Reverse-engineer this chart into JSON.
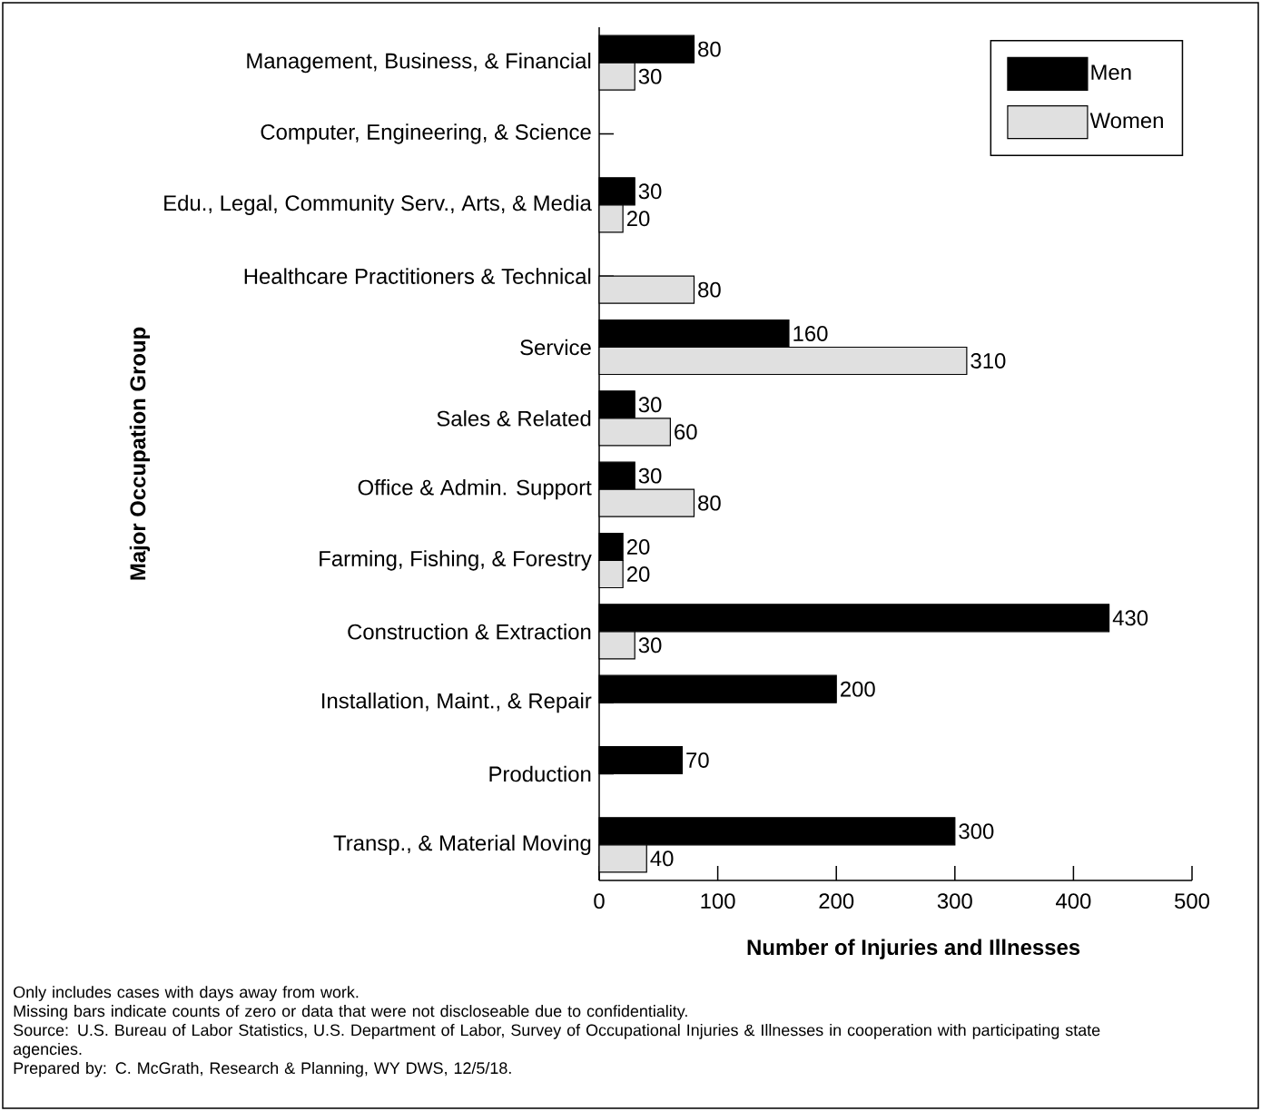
{
  "chart_data": {
    "type": "bar",
    "orientation": "horizontal",
    "xlabel": "Number of Injuries and Illnesses",
    "ylabel": "Major Occupation Group",
    "categories": [
      "Management, Business, & Financial",
      "Computer, Engineering, & Science",
      "Edu., Legal, Community Serv., Arts, & Media",
      "Healthcare Practitioners & Technical",
      "Service",
      "Sales & Related",
      "Office & Admin. Support",
      "Farming, Fishing, & Forestry",
      "Construction & Extraction",
      "Installation, Maint., & Repair",
      "Production",
      "Transp., & Material Moving"
    ],
    "series": [
      {
        "name": "Men",
        "color": "#000000",
        "values": [
          80,
          null,
          30,
          null,
          160,
          30,
          30,
          20,
          430,
          200,
          70,
          300
        ]
      },
      {
        "name": "Women",
        "color": "#e0e0e0",
        "values": [
          30,
          null,
          20,
          80,
          310,
          60,
          80,
          20,
          30,
          null,
          null,
          40
        ]
      }
    ],
    "xlim": [
      0,
      500
    ],
    "xticks": [
      0,
      100,
      200,
      300,
      400,
      500
    ],
    "data_labels": true,
    "legend": "top right",
    "grid": false,
    "annotations": [
      "Only includes cases with days away from work.",
      "Missing bars indicate counts of zero or data that were not discloseable due to confidentiality.",
      "Source: U.S. Bureau of Labor Statistics, U.S. Department of Labor, Survey of Occupational Injuries & Illnesses in cooperation with participating state agencies.",
      "Prepared by: C. McGrath, Research & Planning, WY DWS, 12/5/18."
    ]
  }
}
